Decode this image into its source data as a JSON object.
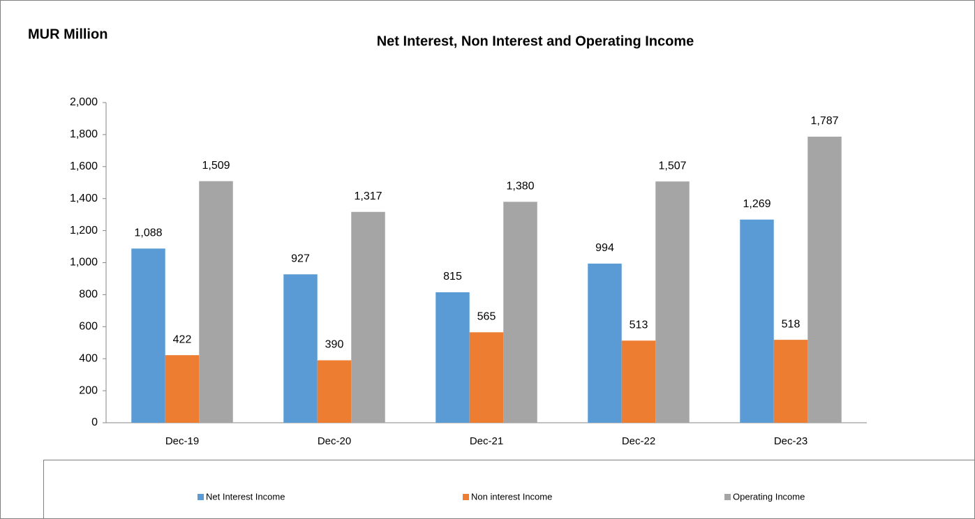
{
  "chart_data": {
    "type": "bar",
    "title": "Net Interest, Non Interest and Operating Income",
    "unit_label": "MUR Million",
    "categories": [
      "Dec-19",
      "Dec-20",
      "Dec-21",
      "Dec-22",
      "Dec-23"
    ],
    "series": [
      {
        "name": "Net Interest Income",
        "color": "#5b9bd5",
        "values": [
          1088,
          927,
          815,
          994,
          1269
        ],
        "value_labels": [
          "1,088",
          "927",
          "815",
          "994",
          "1,269"
        ]
      },
      {
        "name": "Non interest Income",
        "color": "#ed7d31",
        "values": [
          422,
          390,
          565,
          513,
          518
        ],
        "value_labels": [
          "422",
          "390",
          "565",
          "513",
          "518"
        ]
      },
      {
        "name": "Operating Income",
        "color": "#a5a5a5",
        "values": [
          1509,
          1317,
          1380,
          1507,
          1787
        ],
        "value_labels": [
          "1,509",
          "1,317",
          "1,380",
          "1,507",
          "1,787"
        ]
      }
    ],
    "ylim": [
      0,
      2000
    ],
    "yticks": [
      0,
      200,
      400,
      600,
      800,
      {
        "value": 1000,
        "label": "1,000"
      },
      {
        "value": 1200,
        "label": "1,200"
      },
      {
        "value": 1400,
        "label": "1,400"
      },
      {
        "value": 1600,
        "label": "1,600"
      },
      {
        "value": 1800,
        "label": "1,800"
      },
      {
        "value": 2000,
        "label": "2,000"
      }
    ],
    "grid": false,
    "legend": "bottom"
  }
}
